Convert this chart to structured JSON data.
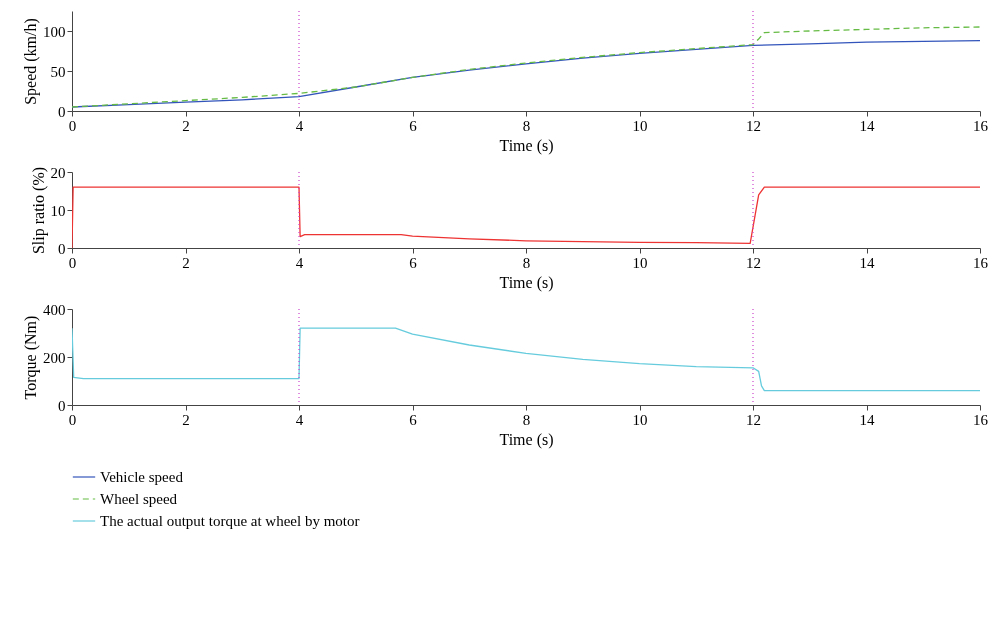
{
  "chart_data": [
    {
      "type": "line",
      "xlabel": "Time (s)",
      "ylabel": "Speed (km/h)",
      "xlim": [
        0,
        16
      ],
      "xticks": [
        0,
        2,
        4,
        6,
        8,
        10,
        12,
        14,
        16
      ],
      "ylim": [
        0,
        125
      ],
      "yticks": [
        0,
        50,
        100
      ],
      "grid": false,
      "legend": "bottom",
      "series": [
        {
          "name": "Vehicle speed",
          "color": "#3355bb",
          "line_style": "solid",
          "x": [
            0,
            1,
            2,
            3,
            4,
            5,
            6,
            7,
            8,
            9,
            10,
            11,
            12,
            13,
            14,
            15,
            16
          ],
          "values": [
            5,
            8,
            11,
            14,
            18,
            30,
            42,
            51,
            59,
            66,
            72,
            77,
            82,
            84,
            86,
            87,
            88
          ]
        },
        {
          "name": "Wheel speed",
          "color": "#66bb44",
          "line_style": "dashed",
          "x": [
            0,
            1,
            2,
            3,
            4,
            5,
            6,
            7,
            8,
            9,
            10,
            11,
            12,
            12.1,
            12.2,
            13,
            14,
            15,
            16
          ],
          "values": [
            5,
            9,
            13,
            17,
            22,
            30,
            42,
            52,
            60,
            67,
            73,
            78,
            83,
            90,
            98,
            100,
            102,
            104,
            105
          ]
        }
      ],
      "ref_lines": [
        {
          "axis": "x",
          "value": 4,
          "color": "#cc44cc",
          "line_style": "dotted"
        },
        {
          "axis": "x",
          "value": 12,
          "color": "#cc44cc",
          "line_style": "dotted"
        }
      ]
    },
    {
      "type": "line",
      "xlabel": "Time (s)",
      "ylabel": "Slip ratio (%)",
      "xlim": [
        0,
        16
      ],
      "xticks": [
        0,
        2,
        4,
        6,
        8,
        10,
        12,
        14,
        16
      ],
      "ylim": [
        0,
        20
      ],
      "yticks": [
        0,
        10,
        20
      ],
      "grid": false,
      "series": [
        {
          "color": "#ee3333",
          "line_style": "solid",
          "x": [
            0,
            0.02,
            4,
            4.02,
            4.1,
            5.8,
            6,
            7,
            8,
            9,
            10,
            11,
            11.95,
            12.1,
            12.2,
            16
          ],
          "values": [
            0,
            16,
            16,
            3,
            3.5,
            3.5,
            3.1,
            2.4,
            1.9,
            1.7,
            1.5,
            1.4,
            1.2,
            14,
            16,
            16
          ]
        }
      ],
      "ref_lines": [
        {
          "axis": "x",
          "value": 4,
          "color": "#cc44cc",
          "line_style": "dotted"
        },
        {
          "axis": "x",
          "value": 12,
          "color": "#cc44cc",
          "line_style": "dotted"
        }
      ]
    },
    {
      "type": "line",
      "xlabel": "Time (s)",
      "ylabel": "Torque (Nm)",
      "xlim": [
        0,
        16
      ],
      "xticks": [
        0,
        2,
        4,
        6,
        8,
        10,
        12,
        14,
        16
      ],
      "ylim": [
        0,
        400
      ],
      "yticks": [
        0,
        200,
        400
      ],
      "grid": false,
      "legend": "bottom",
      "series": [
        {
          "name": "The actual output torque at wheel by motor",
          "color": "#66ccdd",
          "line_style": "solid",
          "x": [
            0,
            0.03,
            0.2,
            4,
            4.02,
            5.7,
            6,
            7,
            8,
            9,
            10,
            11,
            12,
            12.1,
            12.15,
            12.2,
            16
          ],
          "values": [
            320,
            115,
            110,
            110,
            320,
            320,
            295,
            250,
            215,
            190,
            172,
            160,
            155,
            140,
            80,
            60,
            60
          ]
        }
      ],
      "ref_lines": [
        {
          "axis": "x",
          "value": 4,
          "color": "#cc44cc",
          "line_style": "dotted"
        },
        {
          "axis": "x",
          "value": 12,
          "color": "#cc44cc",
          "line_style": "dotted"
        }
      ]
    }
  ]
}
